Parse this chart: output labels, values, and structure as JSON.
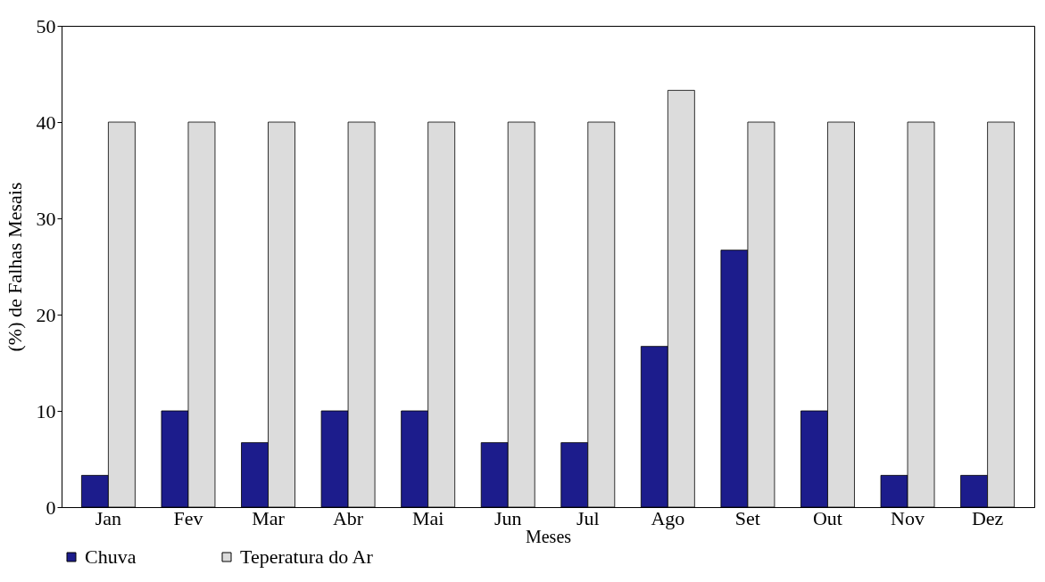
{
  "chart_data": {
    "type": "bar",
    "xlabel": "Meses",
    "ylabel": "(%) de Falhas Mesais",
    "categories": [
      "Jan",
      "Fev",
      "Mar",
      "Abr",
      "Mai",
      "Jun",
      "Jul",
      "Ago",
      "Set",
      "Out",
      "Nov",
      "Dez"
    ],
    "series": [
      {
        "name": "Chuva",
        "color": "#1c1c8c",
        "values": [
          3.3,
          10,
          6.7,
          10,
          10,
          6.7,
          6.7,
          16.7,
          26.7,
          10,
          3.3,
          3.3
        ]
      },
      {
        "name": "Teperatura do Ar",
        "color": "#dcdcdc",
        "values": [
          40,
          40,
          40,
          40,
          40,
          40,
          40,
          43.3,
          40,
          40,
          40,
          40
        ]
      }
    ],
    "ylim": [
      0,
      50
    ],
    "yticks": [
      0,
      10,
      20,
      30,
      40,
      50
    ],
    "grid": false,
    "legend": "bottom"
  }
}
